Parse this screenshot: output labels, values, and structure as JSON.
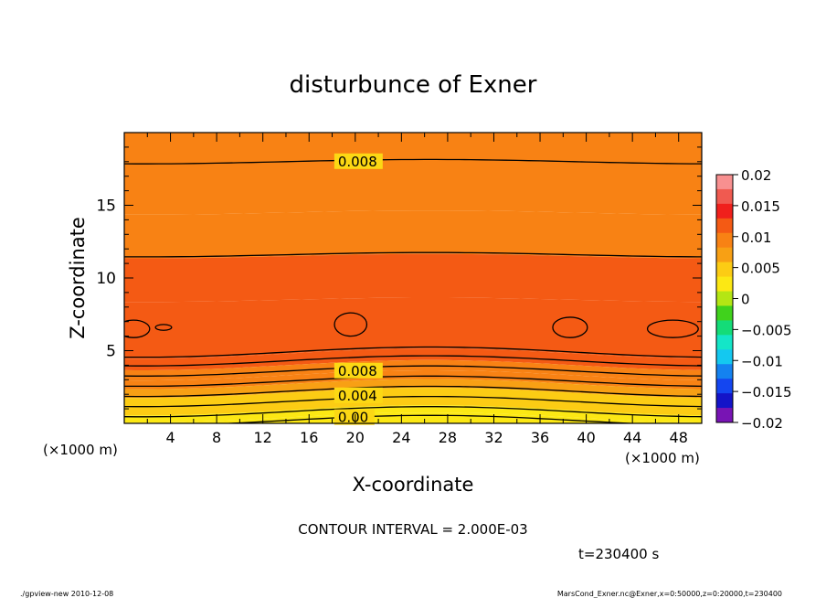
{
  "chart_data": {
    "type": "contour",
    "title": "disturbunce of Exner",
    "xlabel": "X-coordinate",
    "ylabel": "Z-coordinate",
    "x_unit": "(×1000 m)",
    "y_unit": "(×1000 m)",
    "xlim": [
      0,
      50
    ],
    "ylim": [
      0,
      20
    ],
    "x_ticks": [
      4,
      8,
      12,
      16,
      20,
      24,
      28,
      32,
      36,
      40,
      44,
      48
    ],
    "y_ticks": [
      5,
      10,
      15
    ],
    "contour_interval_text": "CONTOUR INTERVAL = 2.000E-03",
    "time_text": "t=230400 s",
    "footer_left": "./gpview-new   2010-12-08",
    "footer_right": "MarsCond_Exner.nc@Exner,x=0:50000,z=0:20000,t=230400",
    "contour_labels": [
      {
        "text": "0.008",
        "x": 18.5,
        "z": 18.0
      },
      {
        "text": "0.008",
        "x": 18.5,
        "z": 3.6
      },
      {
        "text": "0.004",
        "x": 18.5,
        "z": 1.9
      },
      {
        "text": "0.00",
        "x": 18.5,
        "z": 0.4
      }
    ],
    "colorbar": {
      "ticks": [
        "0.02",
        "0.015",
        "0.01",
        "0.005",
        "0",
        "−0.005",
        "−0.01",
        "−0.015",
        "−0.02"
      ],
      "levels": [
        0.02,
        0.0175,
        0.015,
        0.0125,
        0.01,
        0.0075,
        0.005,
        0.0025,
        0.0,
        -0.0025,
        -0.005,
        -0.0075,
        -0.01,
        -0.0125,
        -0.015,
        -0.0175,
        -0.02
      ],
      "colors": [
        "#f89090",
        "#f05a50",
        "#f0201c",
        "#f45a14",
        "#f88214",
        "#f8a014",
        "#fccc14",
        "#fce814",
        "#b4e614",
        "#40d21c",
        "#14dc78",
        "#14e6c8",
        "#14c8f0",
        "#1482f0",
        "#1446f0",
        "#1414c8",
        "#7814b4"
      ]
    },
    "bands": [
      {
        "zmin": 18.0,
        "zmax": 20.0,
        "value": 0.0075
      },
      {
        "zmin": 14.5,
        "zmax": 18.0,
        "value": 0.008
      },
      {
        "zmin": 11.5,
        "zmax": 14.5,
        "value": 0.0095
      },
      {
        "zmin": 8.5,
        "zmax": 11.5,
        "value": 0.0105
      },
      {
        "zmin": 4.8,
        "zmax": 8.5,
        "value": 0.0115
      },
      {
        "zmin": 4.0,
        "zmax": 4.8,
        "value": 0.0105
      },
      {
        "zmin": 3.3,
        "zmax": 4.0,
        "value": 0.009
      },
      {
        "zmin": 2.7,
        "zmax": 3.3,
        "value": 0.0075
      },
      {
        "zmin": 2.1,
        "zmax": 2.7,
        "value": 0.0055
      },
      {
        "zmin": 1.5,
        "zmax": 2.1,
        "value": 0.004
      },
      {
        "zmin": 0.9,
        "zmax": 1.5,
        "value": 0.003
      },
      {
        "zmin": 0.4,
        "zmax": 0.9,
        "value": 0.0015
      },
      {
        "zmin": 0.0,
        "zmax": 0.4,
        "value": 0.0005
      }
    ],
    "contour_lines_z": [
      18.0,
      11.6,
      4.9,
      4.3,
      3.6,
      2.9,
      2.2,
      1.5,
      0.8,
      0.2
    ],
    "closed_contours": [
      {
        "x": 0.8,
        "z": 6.5,
        "rx": 1.4,
        "rz": 0.6
      },
      {
        "x": 3.4,
        "z": 6.6,
        "rx": 0.7,
        "rz": 0.2
      },
      {
        "x": 19.6,
        "z": 6.8,
        "rx": 1.4,
        "rz": 0.8
      },
      {
        "x": 38.6,
        "z": 6.6,
        "rx": 1.5,
        "rz": 0.7
      },
      {
        "x": 47.5,
        "z": 6.5,
        "rx": 2.2,
        "rz": 0.6
      }
    ]
  }
}
